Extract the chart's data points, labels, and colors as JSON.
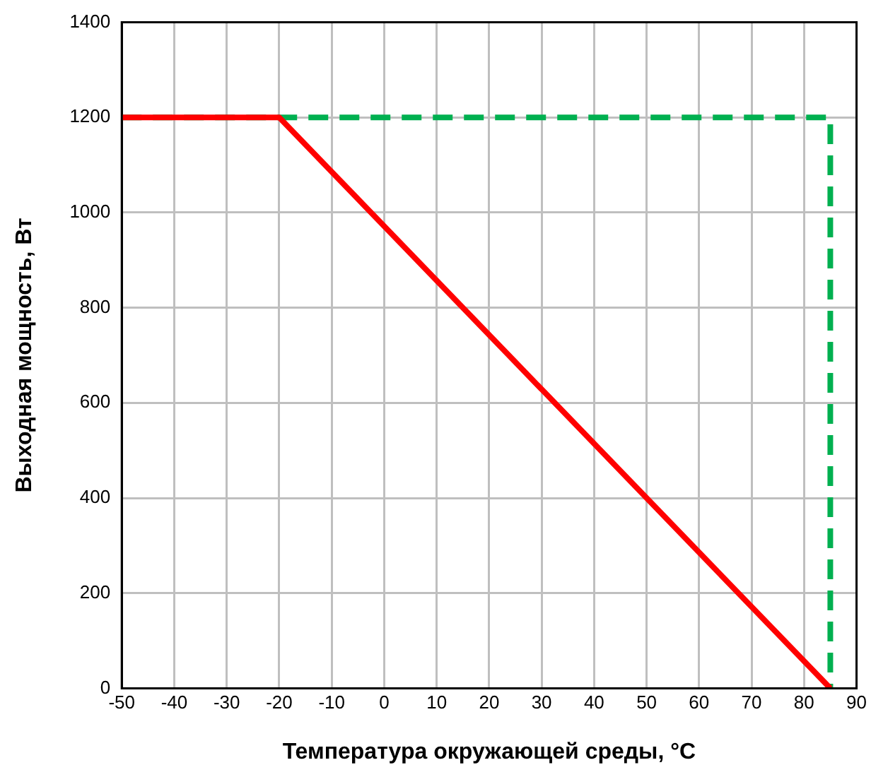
{
  "chart_data": {
    "type": "line",
    "xlabel": "Температура окружающей среды, °C",
    "ylabel": "Выходная мощность, Вт",
    "xlim": [
      -50,
      90
    ],
    "xticks": [
      -50,
      -40,
      -30,
      -20,
      -10,
      0,
      10,
      20,
      30,
      40,
      50,
      60,
      70,
      80,
      90
    ],
    "ylim": [
      0,
      1400
    ],
    "yticks": [
      0,
      200,
      400,
      600,
      800,
      1000,
      1200,
      1400
    ],
    "grid": true,
    "legend": false,
    "marker": "none",
    "series": [
      {
        "color": "#ff0000",
        "x": [
          -50,
          -20,
          85
        ],
        "values": [
          1200,
          1200,
          0
        ],
        "line_style": "solid"
      },
      {
        "color": "#00b050",
        "x": [
          -50,
          85,
          85
        ],
        "values": [
          1200,
          1200,
          0
        ],
        "line_style": "dashed"
      }
    ]
  }
}
